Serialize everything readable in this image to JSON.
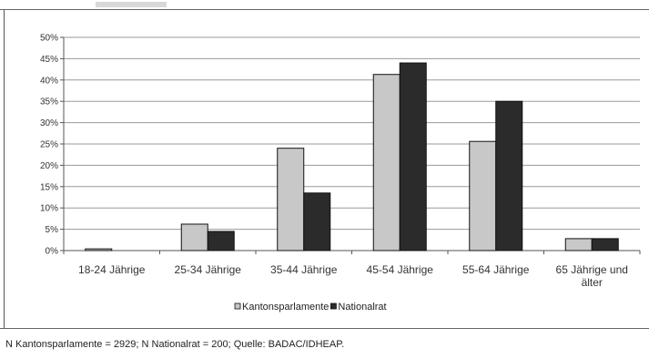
{
  "chart_data": {
    "type": "bar",
    "categories": [
      "18-24 Jährige",
      "25-34 Jährige",
      "35-44 Jährige",
      "45-54 Jährige",
      "55-64 Jährige",
      "65 Jährige und älter"
    ],
    "category_label_lines": [
      [
        "18-24 Jährige"
      ],
      [
        "25-34 Jährige"
      ],
      [
        "35-44 Jährige"
      ],
      [
        "45-54 Jährige"
      ],
      [
        "55-64 Jährige"
      ],
      [
        "65 Jährige und",
        "älter"
      ]
    ],
    "series": [
      {
        "name": "Kantonsparlamente",
        "color": "#c8c8c8",
        "values": [
          0.4,
          6.2,
          24.0,
          41.3,
          25.6,
          2.8
        ]
      },
      {
        "name": "Nationalrat",
        "color": "#2b2b2b",
        "values": [
          0.0,
          4.5,
          13.5,
          44.0,
          35.0,
          2.8
        ]
      }
    ],
    "y_ticks": [
      "0%",
      "5%",
      "10%",
      "15%",
      "20%",
      "25%",
      "30%",
      "35%",
      "40%",
      "45%",
      "50%"
    ],
    "ylim": [
      0,
      50
    ],
    "grid": true,
    "legend_position": "bottom",
    "title": "",
    "xlabel": "",
    "ylabel": ""
  },
  "note": "N Kantonsparlamente = 2929; N Nationalrat = 200; Quelle: BADAC/IDHEAP."
}
